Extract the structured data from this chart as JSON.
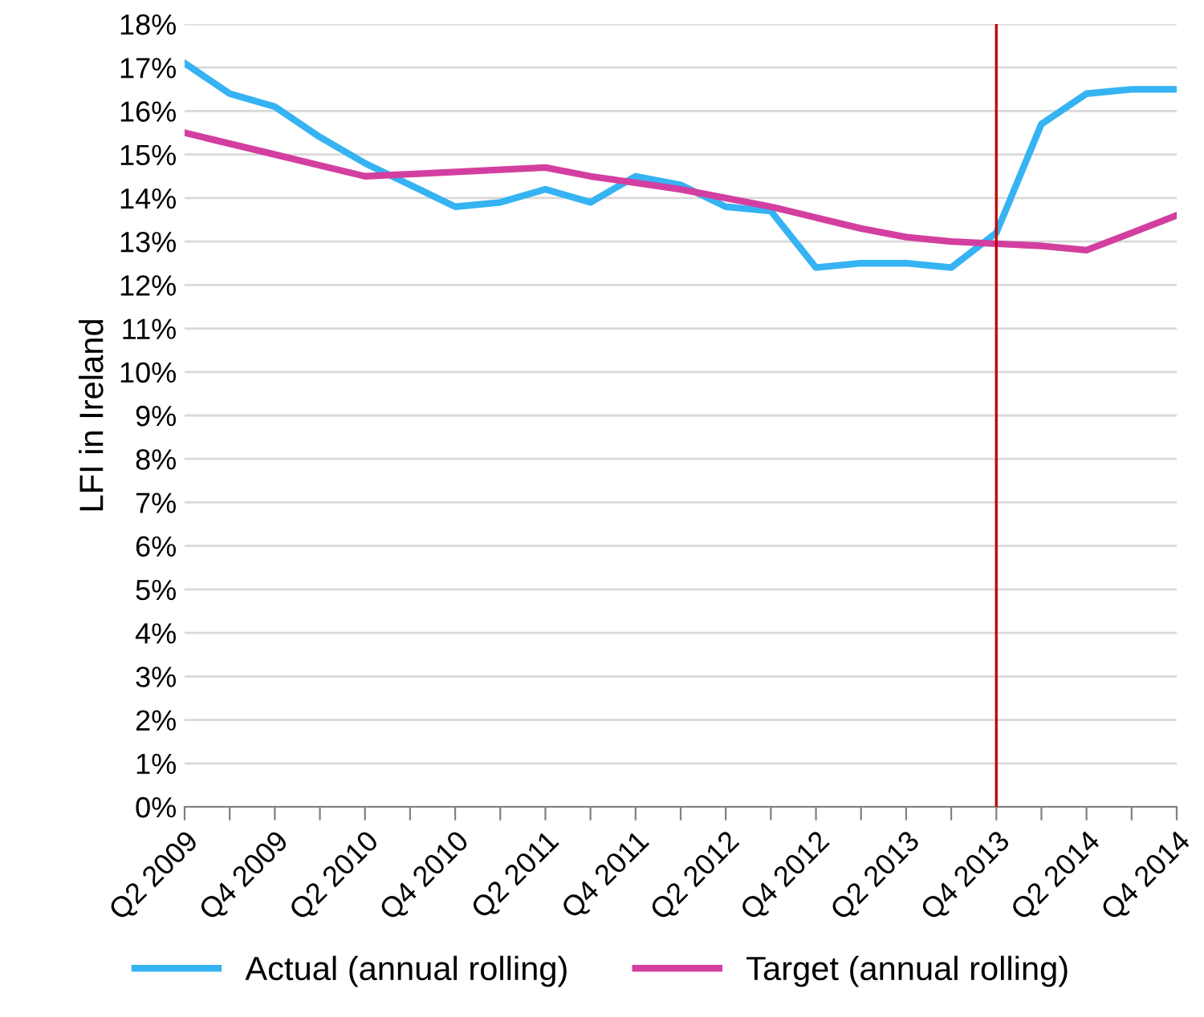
{
  "chart_data": {
    "type": "line",
    "ylabel": "LFI in Ireland",
    "categories": [
      "Q2 2009",
      null,
      "Q4 2009",
      null,
      "Q2 2010",
      null,
      "Q4 2010",
      null,
      "Q2 2011",
      null,
      "Q4 2011",
      null,
      "Q2 2012",
      null,
      "Q4 2012",
      null,
      "Q2 2013",
      null,
      "Q4 2013",
      null,
      "Q2 2014",
      null,
      "Q4 2014"
    ],
    "series": [
      {
        "name": "Actual (annual rolling)",
        "color": "#35b3f2",
        "values": [
          17.1,
          16.4,
          16.1,
          15.4,
          14.8,
          14.3,
          13.8,
          13.9,
          14.2,
          13.9,
          14.5,
          14.3,
          13.8,
          13.7,
          12.4,
          12.5,
          12.5,
          12.4,
          13.2,
          15.7,
          16.4,
          16.5,
          16.5
        ]
      },
      {
        "name": "Target (annual rolling)",
        "color": "#d33fa0",
        "values": [
          15.5,
          15.25,
          15.0,
          14.75,
          14.5,
          14.55,
          14.6,
          14.65,
          14.7,
          14.5,
          14.35,
          14.2,
          14.0,
          13.8,
          13.55,
          13.3,
          13.1,
          13.0,
          12.95,
          12.9,
          12.8,
          13.2,
          13.6
        ]
      }
    ],
    "ylim": [
      0,
      18
    ],
    "yticks": [
      {
        "value": 0,
        "label": "0%"
      },
      {
        "value": 1,
        "label": "1%"
      },
      {
        "value": 2,
        "label": "2%"
      },
      {
        "value": 3,
        "label": "3%"
      },
      {
        "value": 4,
        "label": "4%"
      },
      {
        "value": 5,
        "label": "5%"
      },
      {
        "value": 6,
        "label": "6%"
      },
      {
        "value": 7,
        "label": "7%"
      },
      {
        "value": 8,
        "label": "8%"
      },
      {
        "value": 9,
        "label": "9%"
      },
      {
        "value": 10,
        "label": "10%"
      },
      {
        "value": 11,
        "label": "11%"
      },
      {
        "value": 12,
        "label": "12%"
      },
      {
        "value": 13,
        "label": "13%"
      },
      {
        "value": 14,
        "label": "14%"
      },
      {
        "value": 15,
        "label": "15%"
      },
      {
        "value": 16,
        "label": "16%"
      },
      {
        "value": 17,
        "label": "17%"
      },
      {
        "value": 18,
        "label": "18%"
      }
    ],
    "ref_lines": [
      {
        "axis": "x",
        "value": "Q4 2013",
        "color": "#c00000"
      }
    ],
    "grid": "y",
    "legend": "bottom",
    "marker": "none",
    "line_style": "solid"
  }
}
